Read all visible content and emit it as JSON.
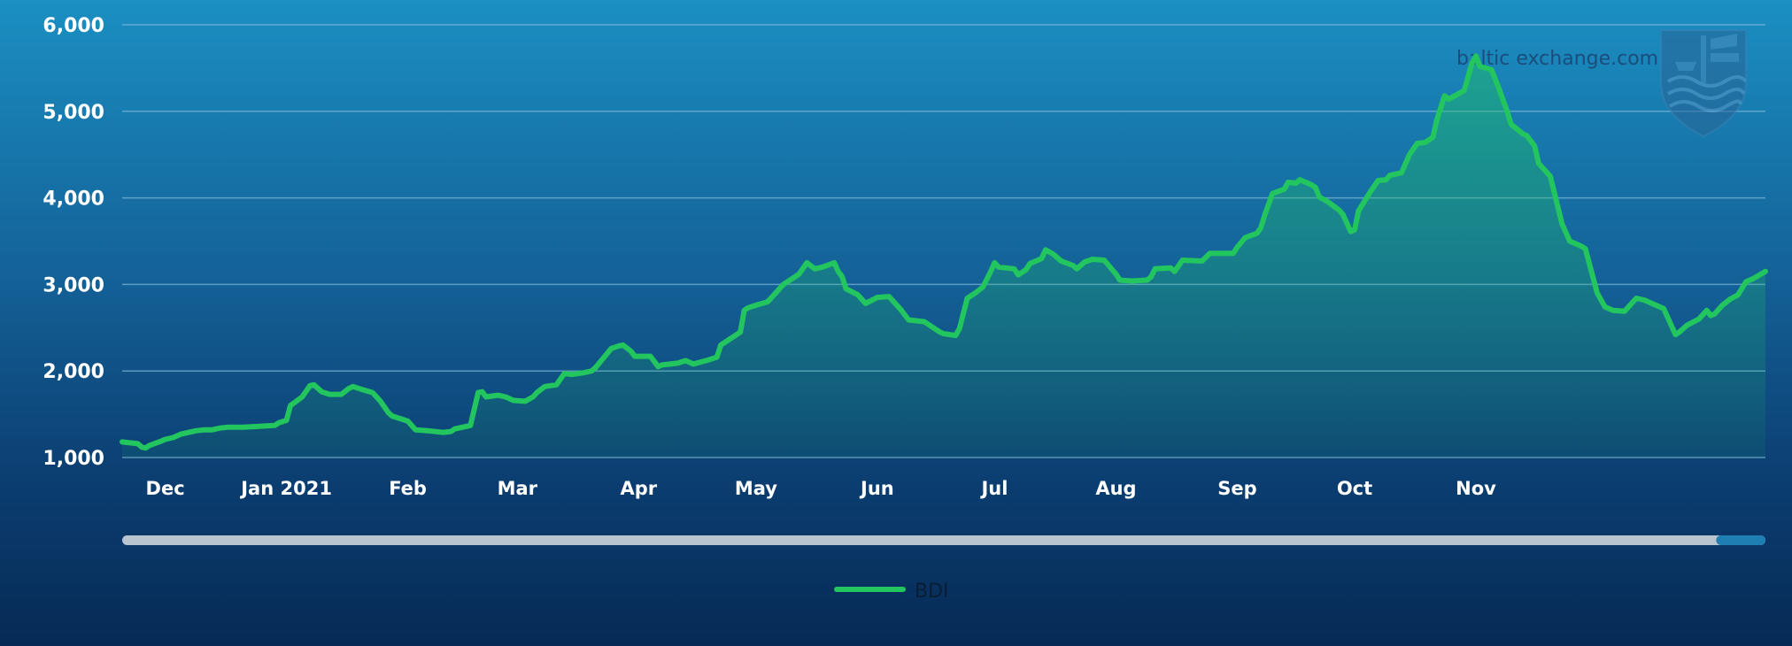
{
  "watermark": "baltic exchange.com",
  "colors": {
    "line": "#22c55e",
    "grid": "#7fb7d8",
    "scrollbar_track": "#b8c4cf",
    "scrollbar_thumb": "#1f7fb3"
  },
  "scrollbar": {
    "window_start": 0.0,
    "window_end": 0.97
  },
  "chart_data": {
    "type": "area",
    "title": "",
    "xlabel": "",
    "ylabel": "",
    "ylim": [
      1000,
      6000
    ],
    "y_ticks": [
      "1,000",
      "2,000",
      "3,000",
      "4,000",
      "5,000",
      "6,000"
    ],
    "y_tick_values": [
      1000,
      2000,
      3000,
      4000,
      5000,
      6000
    ],
    "x_ticks": [
      {
        "label": "Dec",
        "date": "2020-12-01"
      },
      {
        "label": "Jan 2021",
        "date": "2021-01-01"
      },
      {
        "label": "Feb",
        "date": "2021-02-01"
      },
      {
        "label": "Mar",
        "date": "2021-03-01"
      },
      {
        "label": "Apr",
        "date": "2021-04-01"
      },
      {
        "label": "May",
        "date": "2021-05-01"
      },
      {
        "label": "Jun",
        "date": "2021-06-01"
      },
      {
        "label": "Jul",
        "date": "2021-07-01"
      },
      {
        "label": "Aug",
        "date": "2021-08-01"
      },
      {
        "label": "Sep",
        "date": "2021-09-01"
      },
      {
        "label": "Oct",
        "date": "2021-10-01"
      },
      {
        "label": "Nov",
        "date": "2021-11-01"
      }
    ],
    "legend": "bottom-center",
    "grid": true,
    "series": [
      {
        "name": "BDI",
        "points": [
          [
            "2020-11-20",
            1180
          ],
          [
            "2020-11-24",
            1160
          ],
          [
            "2020-11-25",
            1120
          ],
          [
            "2020-11-26",
            1110
          ],
          [
            "2020-11-27",
            1140
          ],
          [
            "2020-11-30",
            1190
          ],
          [
            "2020-12-01",
            1210
          ],
          [
            "2020-12-03",
            1230
          ],
          [
            "2020-12-05",
            1270
          ],
          [
            "2020-12-07",
            1290
          ],
          [
            "2020-12-09",
            1310
          ],
          [
            "2020-12-11",
            1320
          ],
          [
            "2020-12-13",
            1320
          ],
          [
            "2020-12-15",
            1340
          ],
          [
            "2020-12-17",
            1350
          ],
          [
            "2020-12-21",
            1350
          ],
          [
            "2020-12-25",
            1360
          ],
          [
            "2020-12-29",
            1370
          ],
          [
            "2020-12-30",
            1400
          ],
          [
            "2021-01-01",
            1430
          ],
          [
            "2021-01-02",
            1600
          ],
          [
            "2021-01-05",
            1700
          ],
          [
            "2021-01-07",
            1830
          ],
          [
            "2021-01-08",
            1840
          ],
          [
            "2021-01-10",
            1760
          ],
          [
            "2021-01-12",
            1730
          ],
          [
            "2021-01-15",
            1730
          ],
          [
            "2021-01-17",
            1800
          ],
          [
            "2021-01-18",
            1820
          ],
          [
            "2021-01-20",
            1790
          ],
          [
            "2021-01-23",
            1750
          ],
          [
            "2021-01-25",
            1650
          ],
          [
            "2021-01-27",
            1520
          ],
          [
            "2021-01-28",
            1480
          ],
          [
            "2021-01-30",
            1450
          ],
          [
            "2021-02-01",
            1420
          ],
          [
            "2021-02-03",
            1320
          ],
          [
            "2021-02-06",
            1310
          ],
          [
            "2021-02-10",
            1290
          ],
          [
            "2021-02-12",
            1300
          ],
          [
            "2021-02-13",
            1330
          ],
          [
            "2021-02-17",
            1370
          ],
          [
            "2021-02-19",
            1750
          ],
          [
            "2021-02-20",
            1760
          ],
          [
            "2021-02-21",
            1700
          ],
          [
            "2021-02-24",
            1720
          ],
          [
            "2021-02-26",
            1700
          ],
          [
            "2021-02-28",
            1660
          ],
          [
            "2021-03-03",
            1650
          ],
          [
            "2021-03-05",
            1700
          ],
          [
            "2021-03-06",
            1750
          ],
          [
            "2021-03-08",
            1820
          ],
          [
            "2021-03-11",
            1840
          ],
          [
            "2021-03-13",
            1970
          ],
          [
            "2021-03-15",
            1960
          ],
          [
            "2021-03-18",
            1980
          ],
          [
            "2021-03-20",
            2000
          ],
          [
            "2021-03-21",
            2040
          ],
          [
            "2021-03-25",
            2260
          ],
          [
            "2021-03-27",
            2290
          ],
          [
            "2021-03-28",
            2300
          ],
          [
            "2021-03-30",
            2230
          ],
          [
            "2021-03-31",
            2170
          ],
          [
            "2021-04-04",
            2170
          ],
          [
            "2021-04-06",
            2050
          ],
          [
            "2021-04-07",
            2070
          ],
          [
            "2021-04-11",
            2090
          ],
          [
            "2021-04-13",
            2120
          ],
          [
            "2021-04-15",
            2080
          ],
          [
            "2021-04-19",
            2130
          ],
          [
            "2021-04-21",
            2160
          ],
          [
            "2021-04-22",
            2300
          ],
          [
            "2021-04-25",
            2390
          ],
          [
            "2021-04-27",
            2450
          ],
          [
            "2021-04-28",
            2700
          ],
          [
            "2021-04-29",
            2730
          ],
          [
            "2021-05-01",
            2760
          ],
          [
            "2021-05-04",
            2800
          ],
          [
            "2021-05-06",
            2900
          ],
          [
            "2021-05-08",
            3000
          ],
          [
            "2021-05-10",
            3060
          ],
          [
            "2021-05-12",
            3120
          ],
          [
            "2021-05-14",
            3250
          ],
          [
            "2021-05-16",
            3180
          ],
          [
            "2021-05-18",
            3200
          ],
          [
            "2021-05-21",
            3250
          ],
          [
            "2021-05-22",
            3150
          ],
          [
            "2021-05-23",
            3090
          ],
          [
            "2021-05-24",
            2950
          ],
          [
            "2021-05-27",
            2880
          ],
          [
            "2021-05-29",
            2780
          ],
          [
            "2021-06-01",
            2850
          ],
          [
            "2021-06-04",
            2860
          ],
          [
            "2021-06-07",
            2710
          ],
          [
            "2021-06-09",
            2590
          ],
          [
            "2021-06-13",
            2570
          ],
          [
            "2021-06-17",
            2450
          ],
          [
            "2021-06-18",
            2430
          ],
          [
            "2021-06-21",
            2410
          ],
          [
            "2021-06-22",
            2490
          ],
          [
            "2021-06-24",
            2840
          ],
          [
            "2021-06-26",
            2900
          ],
          [
            "2021-06-28",
            2970
          ],
          [
            "2021-06-30",
            3150
          ],
          [
            "2021-07-01",
            3250
          ],
          [
            "2021-07-02",
            3200
          ],
          [
            "2021-07-06",
            3180
          ],
          [
            "2021-07-07",
            3110
          ],
          [
            "2021-07-09",
            3170
          ],
          [
            "2021-07-10",
            3240
          ],
          [
            "2021-07-13",
            3300
          ],
          [
            "2021-07-14",
            3400
          ],
          [
            "2021-07-16",
            3350
          ],
          [
            "2021-07-18",
            3270
          ],
          [
            "2021-07-21",
            3220
          ],
          [
            "2021-07-22",
            3180
          ],
          [
            "2021-07-24",
            3260
          ],
          [
            "2021-07-26",
            3290
          ],
          [
            "2021-07-29",
            3280
          ],
          [
            "2021-08-01",
            3120
          ],
          [
            "2021-08-02",
            3050
          ],
          [
            "2021-08-05",
            3040
          ],
          [
            "2021-08-09",
            3050
          ],
          [
            "2021-08-10",
            3090
          ],
          [
            "2021-08-11",
            3180
          ],
          [
            "2021-08-15",
            3190
          ],
          [
            "2021-08-16",
            3150
          ],
          [
            "2021-08-18",
            3280
          ],
          [
            "2021-08-23",
            3270
          ],
          [
            "2021-08-25",
            3360
          ],
          [
            "2021-08-28",
            3360
          ],
          [
            "2021-08-31",
            3360
          ],
          [
            "2021-09-01",
            3430
          ],
          [
            "2021-09-03",
            3540
          ],
          [
            "2021-09-06",
            3590
          ],
          [
            "2021-09-07",
            3650
          ],
          [
            "2021-09-08",
            3800
          ],
          [
            "2021-09-10",
            4050
          ],
          [
            "2021-09-13",
            4100
          ],
          [
            "2021-09-14",
            4180
          ],
          [
            "2021-09-16",
            4170
          ],
          [
            "2021-09-17",
            4210
          ],
          [
            "2021-09-20",
            4150
          ],
          [
            "2021-09-21",
            4120
          ],
          [
            "2021-09-22",
            4010
          ],
          [
            "2021-09-24",
            3960
          ],
          [
            "2021-09-27",
            3860
          ],
          [
            "2021-09-28",
            3810
          ],
          [
            "2021-09-30",
            3610
          ],
          [
            "2021-10-01",
            3630
          ],
          [
            "2021-10-02",
            3850
          ],
          [
            "2021-10-05",
            4070
          ],
          [
            "2021-10-07",
            4200
          ],
          [
            "2021-10-09",
            4210
          ],
          [
            "2021-10-10",
            4260
          ],
          [
            "2021-10-13",
            4290
          ],
          [
            "2021-10-15",
            4500
          ],
          [
            "2021-10-17",
            4630
          ],
          [
            "2021-10-19",
            4640
          ],
          [
            "2021-10-21",
            4700
          ],
          [
            "2021-10-22",
            4900
          ],
          [
            "2021-10-24",
            5180
          ],
          [
            "2021-10-25",
            5140
          ],
          [
            "2021-10-29",
            5240
          ],
          [
            "2021-10-31",
            5560
          ],
          [
            "2021-11-01",
            5640
          ],
          [
            "2021-11-02",
            5520
          ],
          [
            "2021-11-05",
            5480
          ],
          [
            "2021-11-07",
            5250
          ],
          [
            "2021-11-09",
            5000
          ],
          [
            "2021-11-10",
            4850
          ],
          [
            "2021-11-13",
            4740
          ],
          [
            "2021-11-14",
            4720
          ],
          [
            "2021-11-16",
            4600
          ],
          [
            "2021-11-17",
            4400
          ],
          [
            "2021-11-20",
            4250
          ],
          [
            "2021-11-23",
            3700
          ],
          [
            "2021-11-25",
            3500
          ],
          [
            "2021-11-28",
            3440
          ],
          [
            "2021-11-29",
            3410
          ],
          [
            "2021-12-02",
            2900
          ],
          [
            "2021-12-04",
            2740
          ],
          [
            "2021-12-06",
            2700
          ],
          [
            "2021-12-09",
            2690
          ],
          [
            "2021-12-12",
            2840
          ],
          [
            "2021-12-14",
            2820
          ],
          [
            "2021-12-17",
            2760
          ],
          [
            "2021-12-19",
            2720
          ],
          [
            "2021-12-22",
            2420
          ],
          [
            "2021-12-23",
            2450
          ],
          [
            "2021-12-25",
            2530
          ],
          [
            "2021-12-28",
            2600
          ],
          [
            "2021-12-30",
            2700
          ],
          [
            "2021-12-31",
            2640
          ],
          [
            "2022-01-01",
            2660
          ],
          [
            "2022-01-03",
            2760
          ],
          [
            "2022-01-05",
            2830
          ],
          [
            "2022-01-07",
            2880
          ],
          [
            "2022-01-09",
            3030
          ],
          [
            "2022-01-11",
            3070
          ],
          [
            "2022-01-14",
            3150
          ]
        ]
      }
    ]
  }
}
